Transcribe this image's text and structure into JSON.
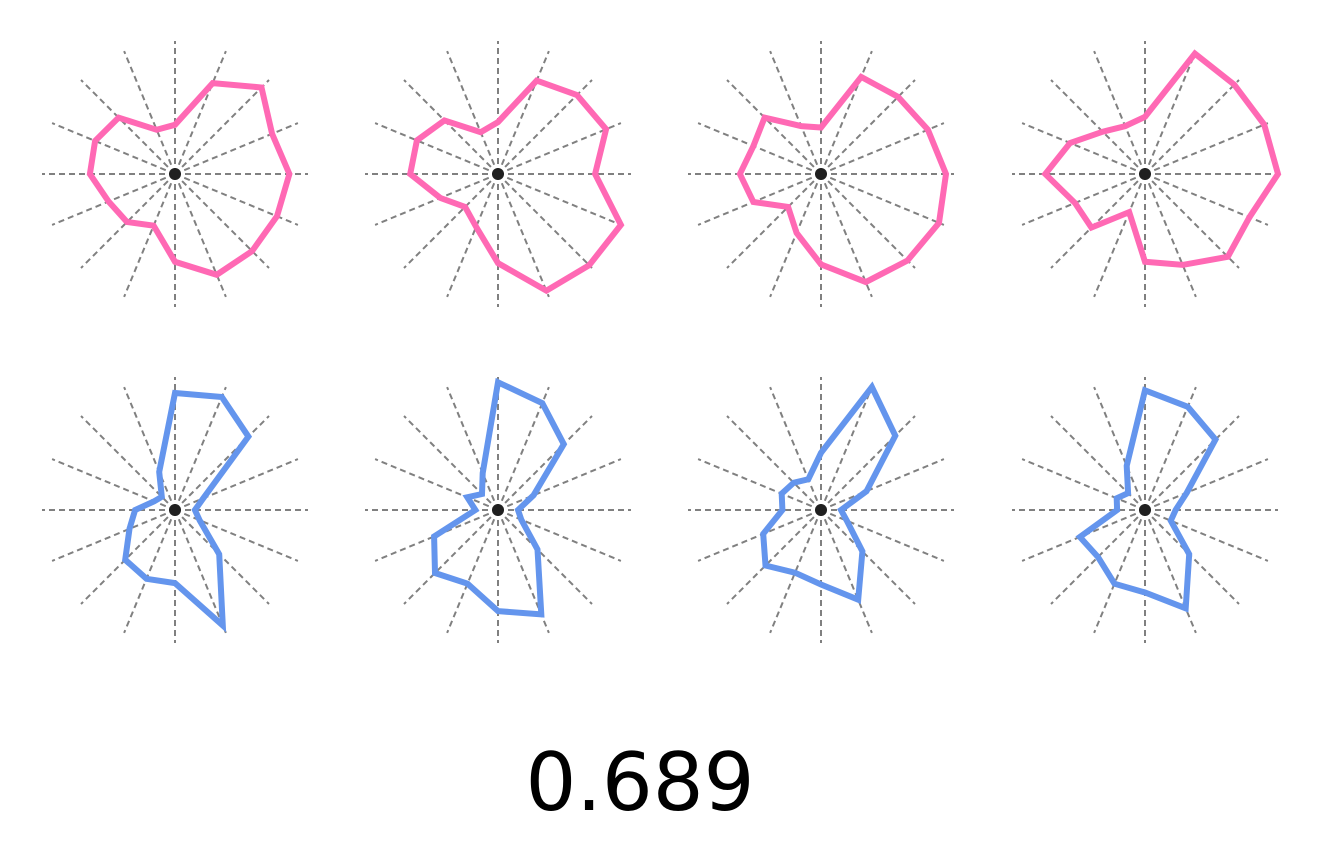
{
  "score_label": "0.689",
  "colors": {
    "top_row": "#ff69b4",
    "bottom_row": "#6495ed",
    "spokes": "#808080",
    "center": "#000000"
  },
  "chart_data": {
    "type": "radar",
    "grid": {
      "spokes": 16,
      "style": "dashed",
      "radial_max": 1.0
    },
    "charts": [
      {
        "row": 0,
        "col": 0,
        "color": "#ff69b4",
        "values": [
          0.86,
          0.79,
          0.92,
          0.74,
          0.37,
          0.36,
          0.6,
          0.65,
          0.64,
          0.54,
          0.51,
          0.42,
          0.66,
          0.82,
          0.82,
          0.83
        ]
      },
      {
        "row": 0,
        "col": 1,
        "color": "#ff69b4",
        "values": [
          0.73,
          0.88,
          0.84,
          0.76,
          0.39,
          0.34,
          0.57,
          0.66,
          0.66,
          0.47,
          0.35,
          0.43,
          0.67,
          0.95,
          0.97,
          1.0
        ]
      },
      {
        "row": 0,
        "col": 2,
        "color": "#ff69b4",
        "values": [
          0.94,
          0.87,
          0.82,
          0.79,
          0.35,
          0.39,
          0.6,
          0.55,
          0.61,
          0.55,
          0.35,
          0.48,
          0.68,
          0.88,
          0.92,
          0.96
        ]
      },
      {
        "row": 0,
        "col": 3,
        "color": "#ff69b4",
        "values": [
          1.0,
          0.97,
          0.95,
          0.98,
          0.43,
          0.39,
          0.45,
          0.61,
          0.75,
          0.57,
          0.57,
          0.31,
          0.66,
          0.74,
          0.88,
          0.85
        ]
      },
      {
        "row": 1,
        "col": 0,
        "color": "#6495ed",
        "values": [
          0.15,
          0.23,
          0.78,
          0.92,
          0.88,
          0.31,
          0.14,
          0.17,
          0.3,
          0.37,
          0.53,
          0.56,
          0.55,
          0.94,
          0.47,
          0.2
        ]
      },
      {
        "row": 1,
        "col": 1,
        "color": "#6495ed",
        "values": [
          0.15,
          0.29,
          0.7,
          0.87,
          0.96,
          0.3,
          0.17,
          0.25,
          0.17,
          0.52,
          0.67,
          0.6,
          0.76,
          0.85,
          0.42,
          0.19
        ]
      },
      {
        "row": 1,
        "col": 2,
        "color": "#6495ed",
        "values": [
          0.15,
          0.37,
          0.79,
          1.0,
          0.43,
          0.25,
          0.29,
          0.32,
          0.29,
          0.47,
          0.59,
          0.51,
          0.56,
          0.73,
          0.44,
          0.21
        ]
      },
      {
        "row": 1,
        "col": 3,
        "color": "#6495ed",
        "values": [
          0.23,
          0.34,
          0.75,
          0.84,
          0.9,
          0.36,
          0.18,
          0.23,
          0.21,
          0.53,
          0.5,
          0.6,
          0.62,
          0.8,
          0.47,
          0.21
        ]
      }
    ]
  }
}
